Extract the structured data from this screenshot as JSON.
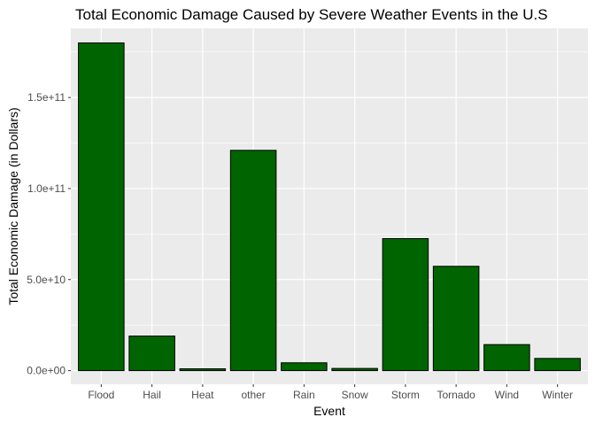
{
  "chart_data": {
    "type": "bar",
    "title": "Total Economic Damage Caused by Severe Weather Events in the U.S",
    "xlabel": "Event",
    "ylabel": "Total Economic Damage (in Dollars)",
    "categories": [
      "Flood",
      "Hail",
      "Heat",
      "other",
      "Rain",
      "Snow",
      "Storm",
      "Tornado",
      "Wind",
      "Winter"
    ],
    "values": [
      180000000000,
      19000000000,
      1000000000,
      121000000000,
      4300000000,
      1200000000,
      72500000000,
      57300000000,
      14300000000,
      6700000000
    ],
    "ylim": [
      -7500000000,
      188000000000
    ],
    "yticks": [
      0,
      50000000000,
      100000000000,
      150000000000
    ],
    "ytick_labels": [
      "0.0e+00",
      "5.0e+10",
      "1.0e+11",
      "1.5e+11"
    ],
    "grid": true,
    "bar_color": "#006400",
    "panel_background": "#ebebeb"
  }
}
